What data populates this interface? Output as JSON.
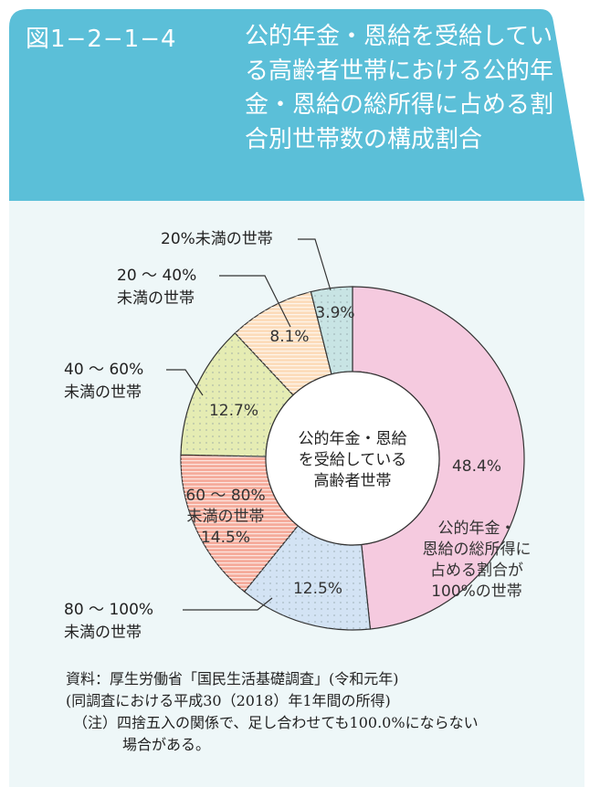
{
  "figure_number": "図1−2−1−4",
  "title": "公的年金・恩給を受給している高齢者世帯における公的年金・恩給の総所得に占める割合別世帯数の構成割合",
  "colors": {
    "header": "#5bbfd8",
    "panel": "#eef7f8"
  },
  "chart_data": {
    "type": "pie",
    "donut": true,
    "center_label": [
      "公的年金・恩給",
      "を受給している",
      "高齢者世帯"
    ],
    "order": "clockwise from top",
    "slices": [
      {
        "label": [
          "公的年金・",
          "恩給の総所得に",
          "占める割合が",
          "100%の世帯"
        ],
        "value": 48.4,
        "value_label": "48.4%",
        "color": "#f5cadf",
        "pattern": "none"
      },
      {
        "label": [
          "80 ～ 100%",
          "未満の世帯"
        ],
        "value": 12.5,
        "value_label": "12.5%",
        "color": "#d3e3f4",
        "pattern": "dots"
      },
      {
        "label": [
          "60 ～ 80%",
          "未満の世帯"
        ],
        "value": 14.5,
        "value_label": "14.5%",
        "color": "#f5ab9b",
        "pattern": "stripes"
      },
      {
        "label": [
          "40 ～ 60%",
          "未満の世帯"
        ],
        "value": 12.7,
        "value_label": "12.7%",
        "color": "#e5ecb3",
        "pattern": "dots"
      },
      {
        "label": [
          "20 ～ 40%",
          "未満の世帯"
        ],
        "value": 8.1,
        "value_label": "8.1%",
        "color": "#fcdcbb",
        "pattern": "stripes"
      },
      {
        "label": [
          "20%未満の世帯"
        ],
        "value": 3.9,
        "value_label": "3.9%",
        "color": "#c8e4e4",
        "pattern": "dots"
      }
    ]
  },
  "notes": [
    "資料：厚生労働省「国民生活基礎調査」(令和元年)",
    "(同調査における平成30（2018）年1年間の所得)",
    "（注）四捨五入の関係で、足し合わせても100.0%にならない",
    "場合がある。"
  ]
}
